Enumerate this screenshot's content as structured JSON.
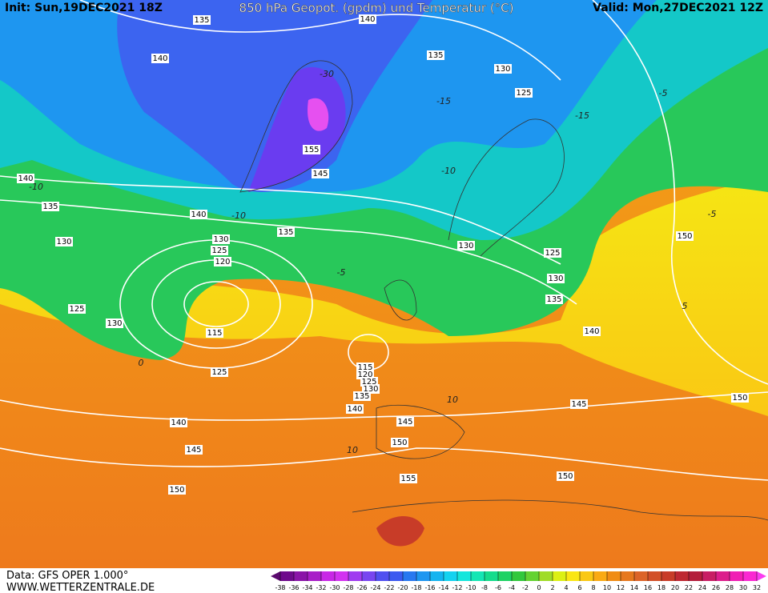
{
  "header": {
    "init": "Init: Sun,19DEC2021 18Z",
    "title": "850 hPa Geopot. (gpdm) und Temperatur (°C)",
    "valid": "Valid: Mon,27DEC2021 12Z"
  },
  "footer": {
    "data": "Data: GFS OPER 1.000°",
    "site": "WWW.WETTERZENTRALE.DE"
  },
  "geopotential_labels": [
    135,
    140,
    140,
    135,
    130,
    125,
    155,
    145,
    140,
    135,
    140,
    135,
    130,
    130,
    125,
    120,
    130,
    125,
    130,
    135,
    150,
    125,
    130,
    115,
    140,
    125,
    115,
    120,
    125,
    130,
    135,
    140,
    145,
    150,
    145,
    140,
    150,
    145,
    150,
    155,
    150
  ],
  "temperature_labels": [
    -10,
    -10,
    -5,
    0,
    10,
    10,
    -5,
    5,
    -15,
    -5,
    -15,
    -10,
    -30
  ],
  "legend": {
    "ticks": [
      -38,
      -36,
      -34,
      -32,
      -30,
      -28,
      -26,
      -24,
      -22,
      -20,
      -18,
      -16,
      -14,
      -12,
      -10,
      -8,
      -6,
      -4,
      -2,
      0,
      2,
      4,
      6,
      8,
      10,
      12,
      14,
      16,
      18,
      20,
      22,
      24,
      26,
      28,
      30,
      32
    ],
    "colors": [
      "#5a0a6e",
      "#6e0a8c",
      "#8a14a8",
      "#a81ec8",
      "#c828e6",
      "#d232f0",
      "#a03cf0",
      "#7846f0",
      "#5050f0",
      "#3c5af0",
      "#2878f0",
      "#1e96f0",
      "#14b4f0",
      "#14d2f0",
      "#14e6dc",
      "#14e6b4",
      "#14dc8c",
      "#1ed264",
      "#32c83c",
      "#64d232",
      "#a0dc28",
      "#dcf014",
      "#fae614",
      "#fac814",
      "#faaa14",
      "#f08c14",
      "#e6781e",
      "#dc6428",
      "#d25028",
      "#c83c28",
      "#be2832",
      "#b41e3c",
      "#c81e64",
      "#dc1e8c",
      "#f01eb4",
      "#fa28d2",
      "#fa3cf0"
    ]
  }
}
